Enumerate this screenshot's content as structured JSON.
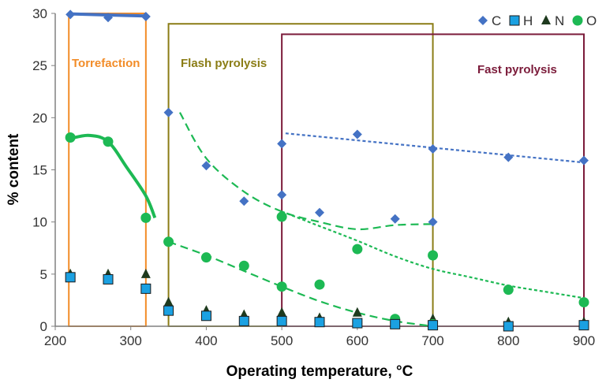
{
  "chart_data": {
    "type": "scatter",
    "title": "",
    "xlabel": "Operating temperature, °C",
    "ylabel": "% content",
    "xlim": [
      200,
      900
    ],
    "ylim": [
      0,
      30
    ],
    "x_ticks": [
      "200",
      "300",
      "400",
      "500",
      "600",
      "700",
      "800",
      "900"
    ],
    "y_ticks": [
      "0",
      "5",
      "10",
      "15",
      "20",
      "25",
      "30"
    ],
    "grid": false,
    "legend_position": "top-right",
    "legend": [
      {
        "key": "C",
        "label": "C",
        "marker": "diamond",
        "color": "#4472C4"
      },
      {
        "key": "H",
        "label": "H",
        "marker": "square",
        "color": "#1BA1E2"
      },
      {
        "key": "N",
        "label": "N",
        "marker": "triangle",
        "color": "#1E3A1E"
      },
      {
        "key": "O",
        "label": "O",
        "marker": "circle",
        "color": "#1DB954"
      }
    ],
    "regions": [
      {
        "name": "Torrefaction",
        "x": [
          218,
          320
        ],
        "y": [
          0,
          30
        ],
        "color": "#F28C28"
      },
      {
        "name": "Flash pyrolysis",
        "x": [
          350,
          700
        ],
        "y": [
          0,
          29
        ],
        "color": "#8B7D16"
      },
      {
        "name": "Fast pyrolysis",
        "x": [
          500,
          900
        ],
        "y": [
          0,
          28
        ],
        "color": "#7B1B3A"
      }
    ],
    "series": [
      {
        "name": "C",
        "points": [
          [
            220,
            29.9
          ],
          [
            270,
            29.6
          ],
          [
            320,
            29.7
          ],
          [
            350,
            20.5
          ],
          [
            400,
            15.4
          ],
          [
            450,
            12.0
          ],
          [
            500,
            17.5
          ],
          [
            500,
            12.6
          ],
          [
            550,
            10.9
          ],
          [
            600,
            18.4
          ],
          [
            650,
            10.3
          ],
          [
            700,
            17.0
          ],
          [
            700,
            10.0
          ],
          [
            800,
            16.2
          ],
          [
            900,
            15.9
          ]
        ]
      },
      {
        "name": "H",
        "points": [
          [
            220,
            4.7
          ],
          [
            270,
            4.5
          ],
          [
            320,
            3.6
          ],
          [
            350,
            1.5
          ],
          [
            400,
            1.0
          ],
          [
            450,
            0.5
          ],
          [
            500,
            0.5
          ],
          [
            550,
            0.4
          ],
          [
            600,
            0.3
          ],
          [
            650,
            0.2
          ],
          [
            700,
            0.1
          ],
          [
            800,
            0.0
          ],
          [
            900,
            0.1
          ]
        ]
      },
      {
        "name": "N",
        "points": [
          [
            220,
            5.0
          ],
          [
            270,
            5.0
          ],
          [
            320,
            5.0
          ],
          [
            350,
            2.3
          ],
          [
            400,
            1.5
          ],
          [
            450,
            1.1
          ],
          [
            500,
            1.3
          ],
          [
            550,
            0.8
          ],
          [
            600,
            1.3
          ],
          [
            650,
            0.5
          ],
          [
            700,
            0.7
          ],
          [
            800,
            0.4
          ],
          [
            900,
            0.4
          ]
        ]
      },
      {
        "name": "O",
        "points": [
          [
            220,
            18.1
          ],
          [
            270,
            17.7
          ],
          [
            320,
            10.4
          ],
          [
            350,
            8.1
          ],
          [
            400,
            6.6
          ],
          [
            450,
            5.8
          ],
          [
            500,
            10.5
          ],
          [
            500,
            3.8
          ],
          [
            550,
            4.0
          ],
          [
            600,
            7.4
          ],
          [
            650,
            0.7
          ],
          [
            700,
            6.8
          ],
          [
            700,
            0.2
          ],
          [
            800,
            3.5
          ],
          [
            900,
            2.3
          ]
        ]
      }
    ],
    "trend_lines": [
      {
        "series": "C",
        "color": "#4472C4",
        "style": "solid",
        "points": [
          [
            220,
            29.95
          ],
          [
            270,
            29.85
          ],
          [
            320,
            29.75
          ]
        ]
      },
      {
        "series": "O",
        "color": "#1DB954",
        "style": "solid",
        "points": [
          [
            220,
            18.0
          ],
          [
            245,
            18.3
          ],
          [
            270,
            17.7
          ],
          [
            295,
            15.2
          ],
          [
            320,
            12.5
          ],
          [
            332,
            10.4
          ]
        ]
      },
      {
        "series": "C",
        "color": "#1DB954",
        "style": "dashed",
        "points": [
          [
            365,
            20.5
          ],
          [
            400,
            16.1
          ],
          [
            450,
            12.9
          ],
          [
            500,
            11.0
          ],
          [
            550,
            10.0
          ],
          [
            600,
            9.3
          ],
          [
            650,
            9.7
          ],
          [
            700,
            9.8
          ]
        ]
      },
      {
        "series": "C",
        "color": "#4472C4",
        "style": "dotted",
        "points": [
          [
            505,
            18.5
          ],
          [
            900,
            15.7
          ]
        ]
      },
      {
        "series": "O",
        "color": "#1DB954",
        "style": "dashed",
        "points": [
          [
            350,
            8.1
          ],
          [
            400,
            6.8
          ],
          [
            450,
            5.3
          ],
          [
            500,
            3.8
          ],
          [
            550,
            2.4
          ],
          [
            600,
            1.3
          ],
          [
            650,
            0.5
          ],
          [
            700,
            0.0
          ]
        ]
      },
      {
        "series": "O",
        "color": "#1DB954",
        "style": "dotted",
        "points": [
          [
            500,
            11.0
          ],
          [
            550,
            9.6
          ],
          [
            600,
            8.2
          ],
          [
            650,
            6.7
          ],
          [
            700,
            5.5
          ],
          [
            750,
            4.7
          ],
          [
            800,
            3.9
          ],
          [
            850,
            3.3
          ],
          [
            900,
            2.7
          ]
        ]
      }
    ]
  }
}
